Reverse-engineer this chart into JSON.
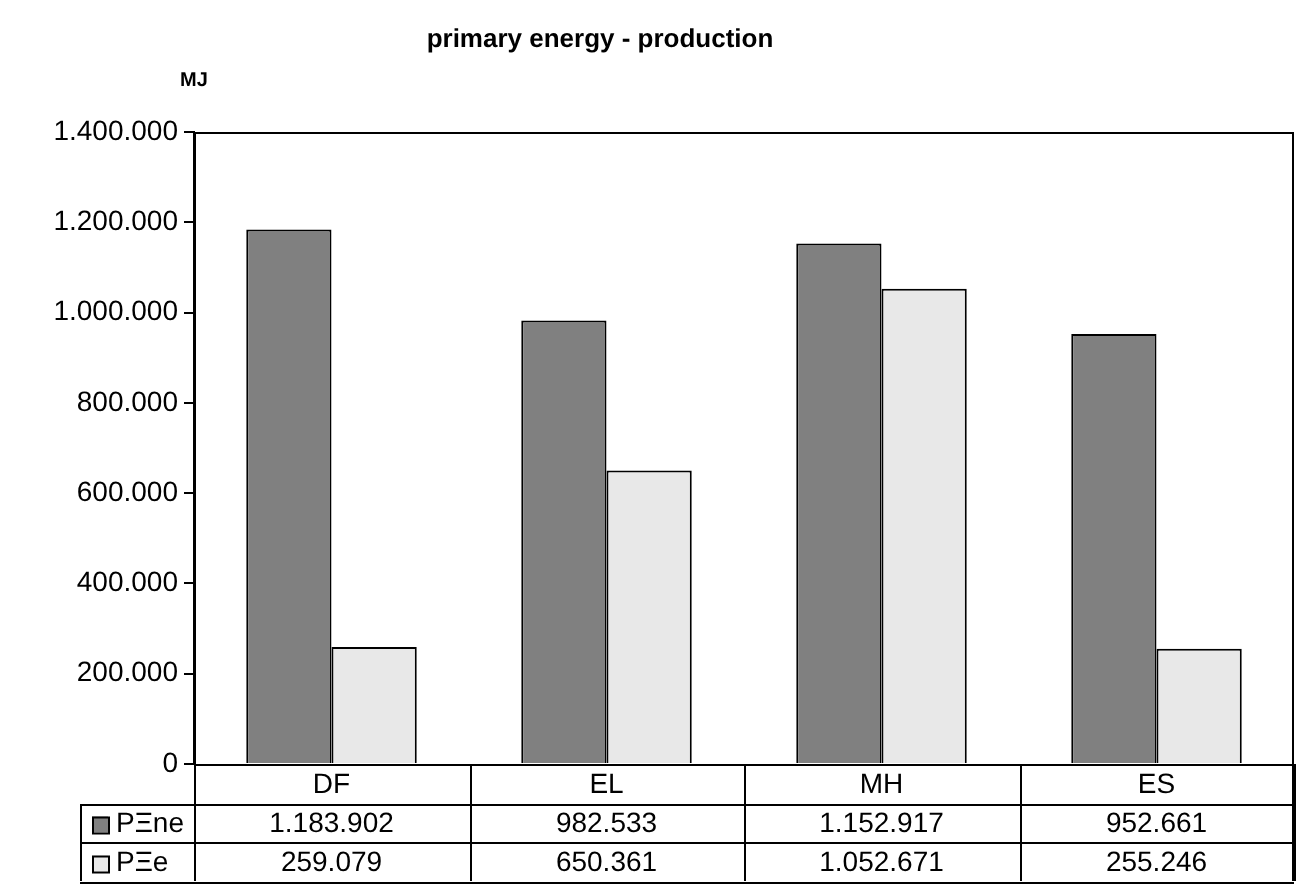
{
  "chart_data": {
    "type": "bar",
    "title": "primary energy - production",
    "ylabel": "MJ",
    "categories": [
      "DF",
      "EL",
      "MH",
      "ES"
    ],
    "series": [
      {
        "name": "PΞne",
        "color": "#808080",
        "values": [
          1183902,
          982533,
          1152917,
          952661
        ],
        "value_labels": [
          "1.183.902",
          "982.533",
          "1.152.917",
          "952.661"
        ]
      },
      {
        "name": "PΞe",
        "color": "#e8e8e8",
        "values": [
          259079,
          650361,
          1052671,
          255246
        ],
        "value_labels": [
          "259.079",
          "650.361",
          "1.052.671",
          "255.246"
        ]
      }
    ],
    "ylim": [
      0,
      1400000
    ],
    "yticks": [
      {
        "value": 0,
        "label": "0"
      },
      {
        "value": 200000,
        "label": "200.000"
      },
      {
        "value": 400000,
        "label": "400.000"
      },
      {
        "value": 600000,
        "label": "600.000"
      },
      {
        "value": 800000,
        "label": "800.000"
      },
      {
        "value": 1000000,
        "label": "1.000.000"
      },
      {
        "value": 1200000,
        "label": "1.200.000"
      },
      {
        "value": 1400000,
        "label": "1.400.000"
      }
    ],
    "grid": false,
    "legend": "bottom"
  }
}
